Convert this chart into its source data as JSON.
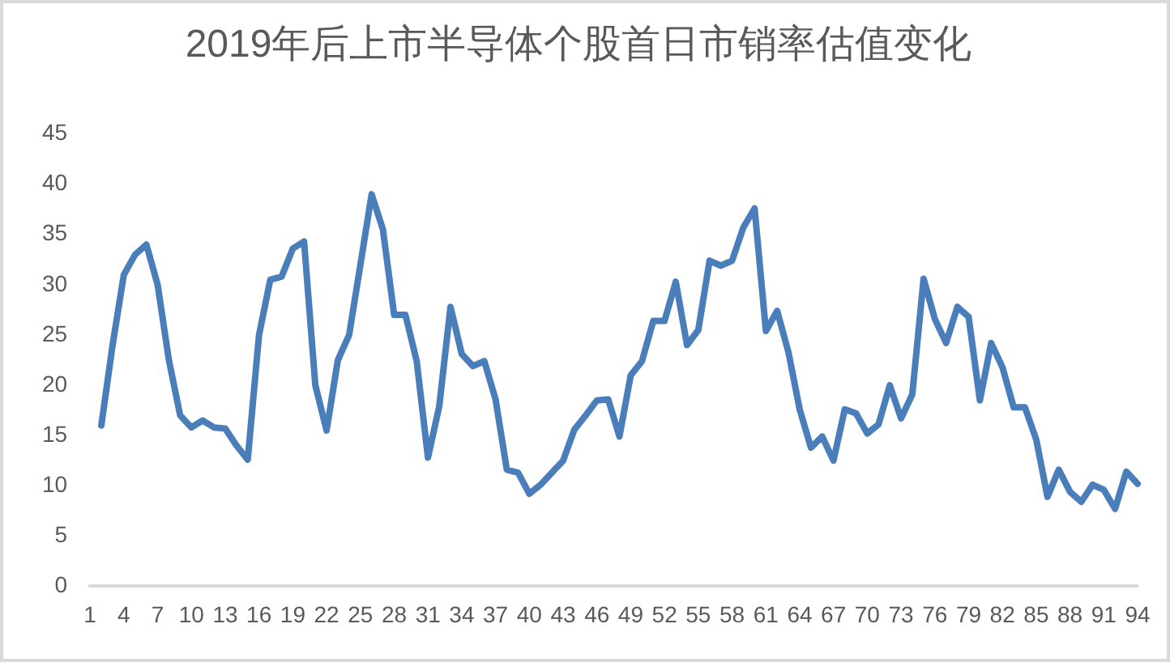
{
  "chart_data": {
    "type": "line",
    "title": "2019年后上市半导体个股首日市销率估值变化",
    "categories": [
      "1",
      null,
      null,
      "4",
      null,
      null,
      "7",
      null,
      null,
      "10",
      null,
      null,
      "13",
      null,
      null,
      "16",
      null,
      null,
      "19",
      null,
      null,
      "22",
      null,
      null,
      "25",
      null,
      null,
      "28",
      null,
      null,
      "31",
      null,
      null,
      "34",
      null,
      null,
      "37",
      null,
      null,
      "40",
      null,
      null,
      "43",
      null,
      null,
      "46",
      null,
      null,
      "49",
      null,
      null,
      "52",
      null,
      null,
      "55",
      null,
      null,
      "58",
      null,
      null,
      "61",
      null,
      null,
      "64",
      null,
      null,
      "67",
      null,
      null,
      "70",
      null,
      null,
      "73",
      null,
      null,
      "76",
      null,
      null,
      "79",
      null,
      null,
      "82",
      null,
      null,
      "85",
      null,
      null,
      "88",
      null,
      null,
      "91",
      null,
      null,
      "94"
    ],
    "series": [
      {
        "color": "#4a7ebb",
        "values": [
          null,
          16,
          24,
          31,
          33,
          34,
          30,
          22.5,
          17,
          15.8,
          16.5,
          15.8,
          15.7,
          14,
          12.6,
          25,
          30.5,
          30.8,
          33.6,
          34.3,
          20,
          15.5,
          22.5,
          25,
          32,
          39,
          35.5,
          27,
          27,
          22.4,
          12.8,
          17.9,
          27.8,
          23.1,
          21.9,
          22.4,
          18.6,
          11.6,
          11.3,
          9.2,
          10.1,
          11.3,
          12.5,
          15.6,
          17,
          18.5,
          18.6,
          14.9,
          21,
          22.4,
          26.4,
          26.4,
          30.3,
          24,
          25.5,
          32.4,
          31.9,
          32.4,
          35.7,
          37.6,
          25.4,
          27.4,
          23.3,
          17.6,
          13.8,
          14.9,
          12.5,
          17.6,
          17.2,
          15.2,
          16.1,
          20,
          16.7,
          19.1,
          30.6,
          26.6,
          24.2,
          27.8,
          26.8,
          18.5,
          24.2,
          21.8,
          17.8,
          17.8,
          14.6,
          8.9,
          11.6,
          9.4,
          8.4,
          10.1,
          9.6,
          7.7,
          11.4,
          10.2
        ]
      }
    ],
    "ylim": [
      0,
      45
    ],
    "yticks": [
      0,
      5,
      10,
      15,
      20,
      25,
      30,
      35,
      40,
      45
    ],
    "grid": false,
    "legend": false,
    "marker": "none",
    "line_style": "solid"
  }
}
